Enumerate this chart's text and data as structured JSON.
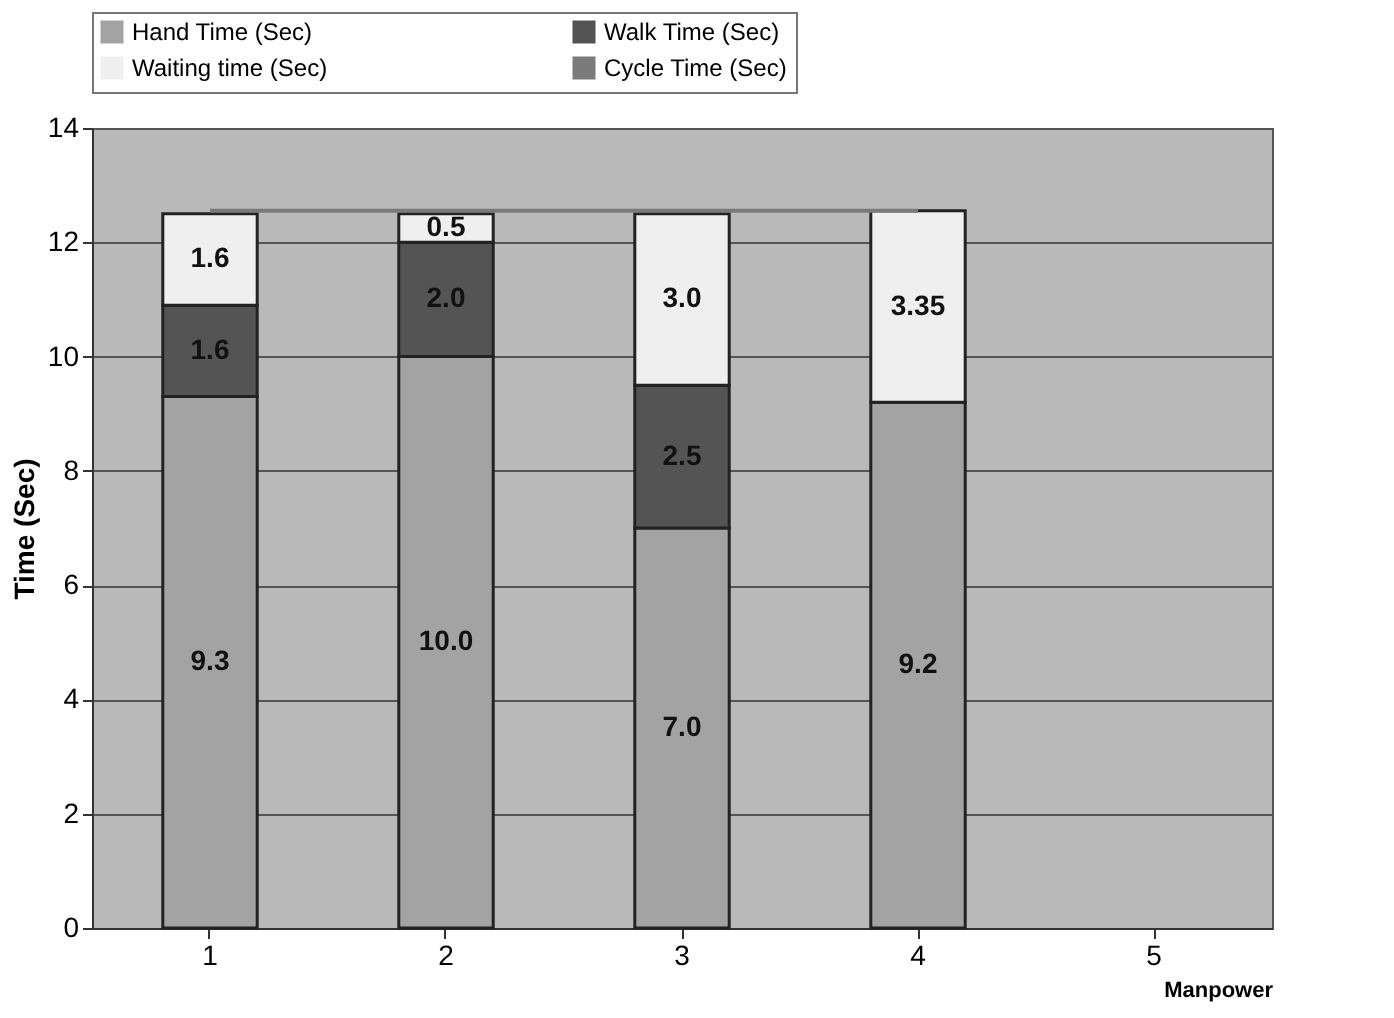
{
  "chart_data": {
    "type": "bar",
    "stacked": true,
    "xlabel": "Manpower",
    "ylabel": "Time (Sec)",
    "categories": [
      "1",
      "2",
      "3",
      "4",
      "5"
    ],
    "series": [
      {
        "name": "Hand Time (Sec)",
        "color": "#a3a3a3",
        "values": [
          9.3,
          10.0,
          7.0,
          9.2,
          null
        ],
        "value_labels": [
          "9.3",
          "10.0",
          "7.0",
          "9.2",
          null
        ]
      },
      {
        "name": "Walk Time (Sec)",
        "color": "#545454",
        "values": [
          1.6,
          2.0,
          2.5,
          null,
          null
        ],
        "value_labels": [
          "1.6",
          "2.0",
          "2.5",
          null,
          null
        ]
      },
      {
        "name": "Waiting time (Sec)",
        "color": "#efefef",
        "values": [
          1.6,
          0.5,
          3.0,
          3.35,
          null
        ],
        "value_labels": [
          "1.6",
          "0.5",
          "3.0",
          "3.35",
          null
        ]
      },
      {
        "name": "Cycle Time (Sec)",
        "type": "line",
        "color": "#7a7a7a",
        "values": [
          12.55,
          12.55,
          12.55,
          12.55,
          null
        ]
      }
    ],
    "ylim": [
      0,
      14
    ],
    "yticks": [
      0,
      2,
      4,
      6,
      8,
      10,
      12,
      14
    ],
    "grid": "y",
    "legend": "top"
  }
}
